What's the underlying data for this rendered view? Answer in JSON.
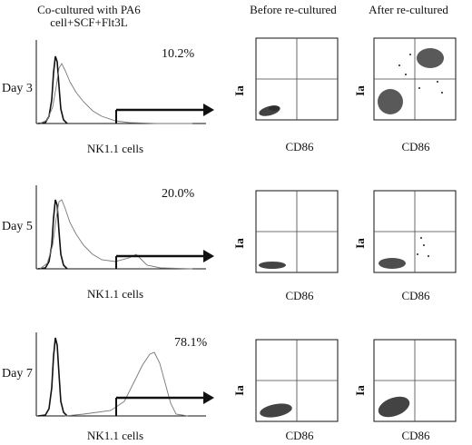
{
  "headers": {
    "col1": "Co-cultured with PA6 cell+SCF+Flt3L",
    "col2": "Before re-cultured",
    "col3": "After re-cultured"
  },
  "rows": [
    {
      "day": "Day 3",
      "percent": "10.2%",
      "hist_xlabel": "NK1.1 cells",
      "scatter_xlabel": "CD86",
      "scatter_ylabel": "Ia"
    },
    {
      "day": "Day 5",
      "percent": "20.0%",
      "hist_xlabel": "NK1.1 cells",
      "scatter_xlabel": "CD86",
      "scatter_ylabel": "Ia"
    },
    {
      "day": "Day 7",
      "percent": "78.1%",
      "hist_xlabel": "NK1.1 cells",
      "scatter_xlabel": "CD86",
      "scatter_ylabel": "Ia"
    }
  ],
  "colors": {
    "ink": "#111111",
    "dots": "#222222",
    "grid": "#444444"
  }
}
